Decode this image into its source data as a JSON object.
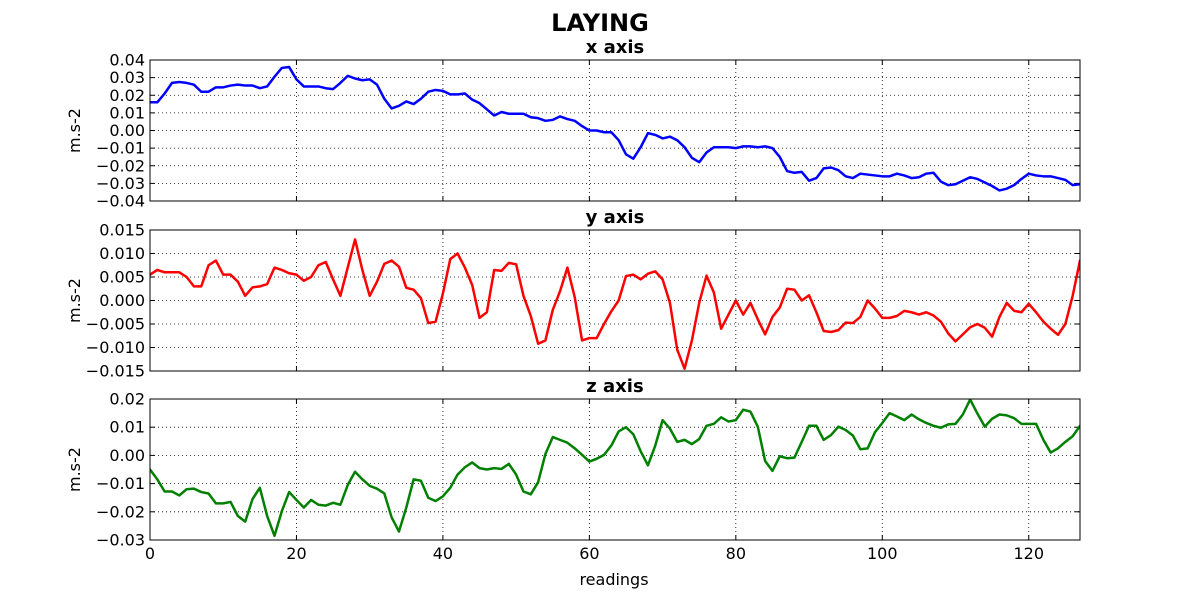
{
  "figure": {
    "title": "LAYING",
    "xlabel": "readings"
  },
  "chart_data": [
    {
      "type": "line",
      "title": "x axis",
      "xlabel": "",
      "ylabel": "m.s-2",
      "xlim": [
        0,
        127
      ],
      "ylim": [
        -0.04,
        0.04
      ],
      "xticks": [
        0,
        20,
        40,
        60,
        80,
        100,
        120
      ],
      "yticks": [
        -0.04,
        -0.03,
        -0.02,
        -0.01,
        0.0,
        0.01,
        0.02,
        0.03,
        0.04
      ],
      "ytick_labels": [
        "−0.04",
        "−0.03",
        "−0.02",
        "−0.01",
        "0.00",
        "0.01",
        "0.02",
        "0.03",
        "0.04"
      ],
      "grid": true,
      "series": [
        {
          "color": "#0000ff",
          "x": [
            0,
            1,
            2,
            3,
            4,
            5,
            6,
            7,
            8,
            9,
            10,
            11,
            12,
            13,
            14,
            15,
            16,
            17,
            18,
            19,
            20,
            21,
            22,
            23,
            24,
            25,
            26,
            27,
            28,
            29,
            30,
            31,
            32,
            33,
            34,
            35,
            36,
            37,
            38,
            39,
            40,
            41,
            42,
            43,
            44,
            45,
            46,
            47,
            48,
            49,
            50,
            51,
            52,
            53,
            54,
            55,
            56,
            57,
            58,
            59,
            60,
            61,
            62,
            63,
            64,
            65,
            66,
            67,
            68,
            69,
            70,
            71,
            72,
            73,
            74,
            75,
            76,
            77,
            78,
            79,
            80,
            81,
            82,
            83,
            84,
            85,
            86,
            87,
            88,
            89,
            90,
            91,
            92,
            93,
            94,
            95,
            96,
            97,
            98,
            99,
            100,
            101,
            102,
            103,
            104,
            105,
            106,
            107,
            108,
            109,
            110,
            111,
            112,
            113,
            114,
            115,
            116,
            117,
            118,
            119,
            120,
            121,
            122,
            123,
            124,
            125,
            126,
            127
          ],
          "values": [
            0.016,
            0.016,
            0.021,
            0.027,
            0.0275,
            0.027,
            0.026,
            0.022,
            0.022,
            0.0245,
            0.0245,
            0.0255,
            0.026,
            0.0255,
            0.0255,
            0.024,
            0.025,
            0.0305,
            0.0355,
            0.036,
            0.029,
            0.025,
            0.025,
            0.025,
            0.024,
            0.0235,
            0.027,
            0.031,
            0.0295,
            0.0285,
            0.029,
            0.026,
            0.018,
            0.0125,
            0.014,
            0.0165,
            0.015,
            0.018,
            0.022,
            0.023,
            0.0225,
            0.0205,
            0.0205,
            0.021,
            0.0175,
            0.0155,
            0.012,
            0.0085,
            0.0105,
            0.0095,
            0.0095,
            0.0095,
            0.0075,
            0.007,
            0.0055,
            0.006,
            0.008,
            0.0065,
            0.0055,
            0.0025,
            0.0,
            0.0,
            -0.001,
            -0.001,
            -0.0055,
            -0.0135,
            -0.016,
            -0.0095,
            -0.0015,
            -0.0025,
            -0.0045,
            -0.0035,
            -0.0055,
            -0.0095,
            -0.0155,
            -0.018,
            -0.0125,
            -0.0095,
            -0.0095,
            -0.0095,
            -0.01,
            -0.009,
            -0.009,
            -0.0095,
            -0.009,
            -0.01,
            -0.015,
            -0.023,
            -0.024,
            -0.0235,
            -0.0285,
            -0.027,
            -0.0215,
            -0.021,
            -0.0225,
            -0.026,
            -0.027,
            -0.0245,
            -0.025,
            -0.0255,
            -0.026,
            -0.026,
            -0.0245,
            -0.0255,
            -0.027,
            -0.0265,
            -0.0245,
            -0.024,
            -0.029,
            -0.031,
            -0.0305,
            -0.0285,
            -0.0265,
            -0.0275,
            -0.0295,
            -0.0315,
            -0.034,
            -0.033,
            -0.031,
            -0.0275,
            -0.0245,
            -0.0255,
            -0.026,
            -0.026,
            -0.027,
            -0.028,
            -0.031,
            -0.0305
          ]
        }
      ]
    },
    {
      "type": "line",
      "title": "y axis",
      "xlabel": "",
      "ylabel": "m.s-2",
      "xlim": [
        0,
        127
      ],
      "ylim": [
        -0.015,
        0.015
      ],
      "xticks": [
        0,
        20,
        40,
        60,
        80,
        100,
        120
      ],
      "yticks": [
        -0.015,
        -0.01,
        -0.005,
        0.0,
        0.005,
        0.01,
        0.015
      ],
      "ytick_labels": [
        "−0.015",
        "−0.010",
        "−0.005",
        "0.000",
        "0.005",
        "0.010",
        "0.015"
      ],
      "grid": true,
      "series": [
        {
          "color": "#ff0000",
          "x": [
            0,
            1,
            2,
            3,
            4,
            5,
            6,
            7,
            8,
            9,
            10,
            11,
            12,
            13,
            14,
            15,
            16,
            17,
            18,
            19,
            20,
            21,
            22,
            23,
            24,
            25,
            26,
            27,
            28,
            29,
            30,
            31,
            32,
            33,
            34,
            35,
            36,
            37,
            38,
            39,
            40,
            41,
            42,
            43,
            44,
            45,
            46,
            47,
            48,
            49,
            50,
            51,
            52,
            53,
            54,
            55,
            56,
            57,
            58,
            59,
            60,
            61,
            62,
            63,
            64,
            65,
            66,
            67,
            68,
            69,
            70,
            71,
            72,
            73,
            74,
            75,
            76,
            77,
            78,
            79,
            80,
            81,
            82,
            83,
            84,
            85,
            86,
            87,
            88,
            89,
            90,
            91,
            92,
            93,
            94,
            95,
            96,
            97,
            98,
            99,
            100,
            101,
            102,
            103,
            104,
            105,
            106,
            107,
            108,
            109,
            110,
            111,
            112,
            113,
            114,
            115,
            116,
            117,
            118,
            119,
            120,
            121,
            122,
            123,
            124,
            125,
            126,
            127
          ],
          "values": [
            0.0055,
            0.0065,
            0.006,
            0.006,
            0.006,
            0.005,
            0.003,
            0.003,
            0.0075,
            0.0085,
            0.0055,
            0.0055,
            0.004,
            0.001,
            0.0028,
            0.003,
            0.0035,
            0.007,
            0.0065,
            0.0058,
            0.0055,
            0.0042,
            0.005,
            0.0075,
            0.0082,
            0.0045,
            0.001,
            0.007,
            0.013,
            0.0065,
            0.001,
            0.004,
            0.0078,
            0.0085,
            0.0072,
            0.0027,
            0.0023,
            0.0005,
            -0.0048,
            -0.0045,
            0.0015,
            0.0088,
            0.01,
            0.007,
            0.0033,
            -0.0037,
            -0.0025,
            0.0065,
            0.0063,
            0.008,
            0.0077,
            0.001,
            -0.0033,
            -0.0092,
            -0.0085,
            -0.002,
            0.002,
            0.007,
            0.0007,
            -0.0085,
            -0.008,
            -0.008,
            -0.005,
            -0.0023,
            0.0,
            0.0052,
            0.0055,
            0.0045,
            0.0057,
            0.0062,
            0.0045,
            -0.0005,
            -0.0105,
            -0.0145,
            -0.0085,
            -0.0005,
            0.0053,
            0.0017,
            -0.006,
            -0.003,
            0.0,
            -0.003,
            -0.0005,
            -0.004,
            -0.0072,
            -0.0035,
            -0.0015,
            0.0025,
            0.0023,
            0.0,
            0.0011,
            -0.0025,
            -0.0065,
            -0.0067,
            -0.0063,
            -0.0047,
            -0.0048,
            -0.0035,
            0.0,
            -0.0017,
            -0.0037,
            -0.0037,
            -0.0033,
            -0.0022,
            -0.0025,
            -0.003,
            -0.0025,
            -0.0032,
            -0.0045,
            -0.007,
            -0.0087,
            -0.0072,
            -0.0057,
            -0.005,
            -0.0058,
            -0.0077,
            -0.0035,
            -0.0005,
            -0.0022,
            -0.0025,
            -0.0007,
            -0.0025,
            -0.0045,
            -0.006,
            -0.0073,
            -0.005,
            0.001,
            0.0085
          ]
        }
      ]
    },
    {
      "type": "line",
      "title": "z axis",
      "xlabel": "readings",
      "ylabel": "m.s-2",
      "xlim": [
        0,
        127
      ],
      "ylim": [
        -0.03,
        0.02
      ],
      "xticks": [
        0,
        20,
        40,
        60,
        80,
        100,
        120
      ],
      "xtick_labels": [
        "0",
        "20",
        "40",
        "60",
        "80",
        "100",
        "120"
      ],
      "yticks": [
        -0.03,
        -0.02,
        -0.01,
        0.0,
        0.01,
        0.02
      ],
      "ytick_labels": [
        "−0.03",
        "−0.02",
        "−0.01",
        "0.00",
        "0.01",
        "0.02"
      ],
      "grid": true,
      "series": [
        {
          "color": "#008000",
          "x": [
            0,
            1,
            2,
            3,
            4,
            5,
            6,
            7,
            8,
            9,
            10,
            11,
            12,
            13,
            14,
            15,
            16,
            17,
            18,
            19,
            20,
            21,
            22,
            23,
            24,
            25,
            26,
            27,
            28,
            29,
            30,
            31,
            32,
            33,
            34,
            35,
            36,
            37,
            38,
            39,
            40,
            41,
            42,
            43,
            44,
            45,
            46,
            47,
            48,
            49,
            50,
            51,
            52,
            53,
            54,
            55,
            56,
            57,
            58,
            59,
            60,
            61,
            62,
            63,
            64,
            65,
            66,
            67,
            68,
            69,
            70,
            71,
            72,
            73,
            74,
            75,
            76,
            77,
            78,
            79,
            80,
            81,
            82,
            83,
            84,
            85,
            86,
            87,
            88,
            89,
            90,
            91,
            92,
            93,
            94,
            95,
            96,
            97,
            98,
            99,
            100,
            101,
            102,
            103,
            104,
            105,
            106,
            107,
            108,
            109,
            110,
            111,
            112,
            113,
            114,
            115,
            116,
            117,
            118,
            119,
            120,
            121,
            122,
            123,
            124,
            125,
            126,
            127
          ],
          "values": [
            -0.005,
            -0.0085,
            -0.0128,
            -0.0128,
            -0.0142,
            -0.012,
            -0.0118,
            -0.013,
            -0.0135,
            -0.017,
            -0.017,
            -0.0165,
            -0.0215,
            -0.0235,
            -0.0155,
            -0.0115,
            -0.0215,
            -0.0285,
            -0.0198,
            -0.013,
            -0.0158,
            -0.0185,
            -0.0158,
            -0.0175,
            -0.0178,
            -0.0168,
            -0.0175,
            -0.0105,
            -0.0058,
            -0.0085,
            -0.0108,
            -0.0118,
            -0.0135,
            -0.022,
            -0.027,
            -0.0185,
            -0.0085,
            -0.009,
            -0.015,
            -0.0162,
            -0.0145,
            -0.0115,
            -0.0068,
            -0.0042,
            -0.0025,
            -0.0045,
            -0.005,
            -0.0045,
            -0.0048,
            -0.003,
            -0.0068,
            -0.0128,
            -0.0138,
            -0.0095,
            0.0005,
            0.0065,
            0.0055,
            0.0045,
            0.0025,
            0.0002,
            -0.0022,
            -0.0012,
            0.0002,
            0.0035,
            0.0085,
            0.01,
            0.0075,
            0.0015,
            -0.0035,
            0.0035,
            0.0125,
            0.0095,
            0.0048,
            0.0055,
            0.004,
            0.0058,
            0.0105,
            0.0112,
            0.0135,
            0.012,
            0.0125,
            0.0162,
            0.0155,
            0.0102,
            -0.002,
            -0.0055,
            -0.0003,
            -0.001,
            -0.0008,
            0.0048,
            0.0105,
            0.0105,
            0.0055,
            0.0072,
            0.0102,
            0.009,
            0.007,
            0.0022,
            0.0025,
            0.0082,
            0.0115,
            0.015,
            0.0138,
            0.0125,
            0.0145,
            0.0128,
            0.0115,
            0.0105,
            0.0098,
            0.011,
            0.0112,
            0.0145,
            0.0198,
            0.0148,
            0.0102,
            0.013,
            0.0145,
            0.0142,
            0.0132,
            0.0112,
            0.0112,
            0.0112,
            0.0055,
            0.001,
            0.0025,
            0.0048,
            0.0068,
            0.0105
          ]
        }
      ]
    }
  ]
}
